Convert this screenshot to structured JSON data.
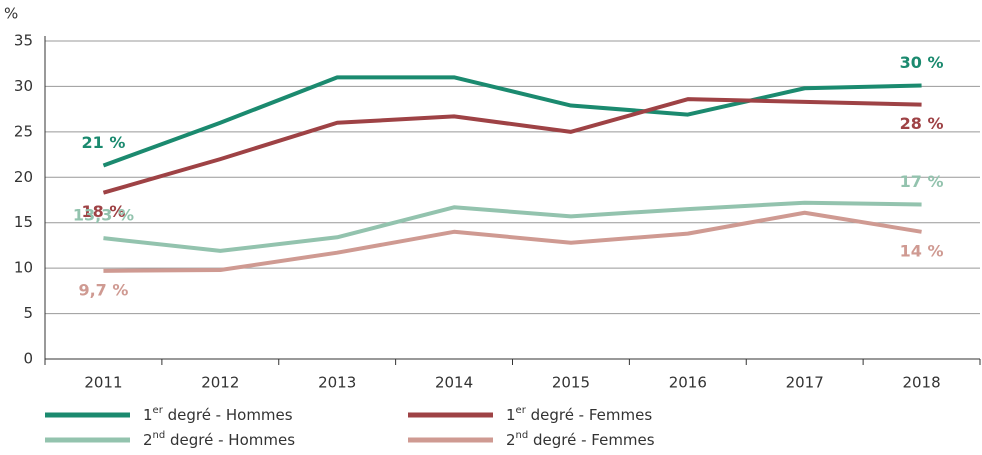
{
  "chart_data": {
    "type": "line",
    "y_unit": "%",
    "categories": [
      "2011",
      "2012",
      "2013",
      "2014",
      "2015",
      "2016",
      "2017",
      "2018"
    ],
    "series": [
      {
        "name": "1er degré - Hommes",
        "color": "#1b8a6f",
        "values": [
          21.3,
          26,
          31,
          31,
          27.9,
          26.9,
          29.8,
          30.1
        ],
        "value_labels": [
          "21 %",
          null,
          null,
          null,
          null,
          null,
          null,
          "30 %"
        ]
      },
      {
        "name": "1er degré - Femmes",
        "color": "#9e4245",
        "values": [
          18.3,
          22,
          26,
          26.7,
          25,
          28.6,
          28.3,
          28
        ],
        "value_labels": [
          "18 %",
          null,
          null,
          null,
          null,
          null,
          null,
          "28 %"
        ]
      },
      {
        "name": "2nd degré - Hommes",
        "color": "#93c3ae",
        "values": [
          13.3,
          11.9,
          13.4,
          16.7,
          15.7,
          16.5,
          17.2,
          17
        ],
        "value_labels": [
          "13,3 %",
          null,
          null,
          null,
          null,
          null,
          null,
          "17 %"
        ]
      },
      {
        "name": "2nd degré - Femmes",
        "color": "#cf9a92",
        "values": [
          9.7,
          9.8,
          11.7,
          14,
          12.8,
          13.8,
          16.1,
          14
        ],
        "value_labels": [
          "9,7 %",
          null,
          null,
          null,
          null,
          null,
          null,
          "14 %"
        ]
      }
    ],
    "ylim": [
      0,
      35
    ],
    "yticks": [
      0,
      5,
      10,
      15,
      20,
      25,
      30,
      35
    ],
    "grid": true
  }
}
